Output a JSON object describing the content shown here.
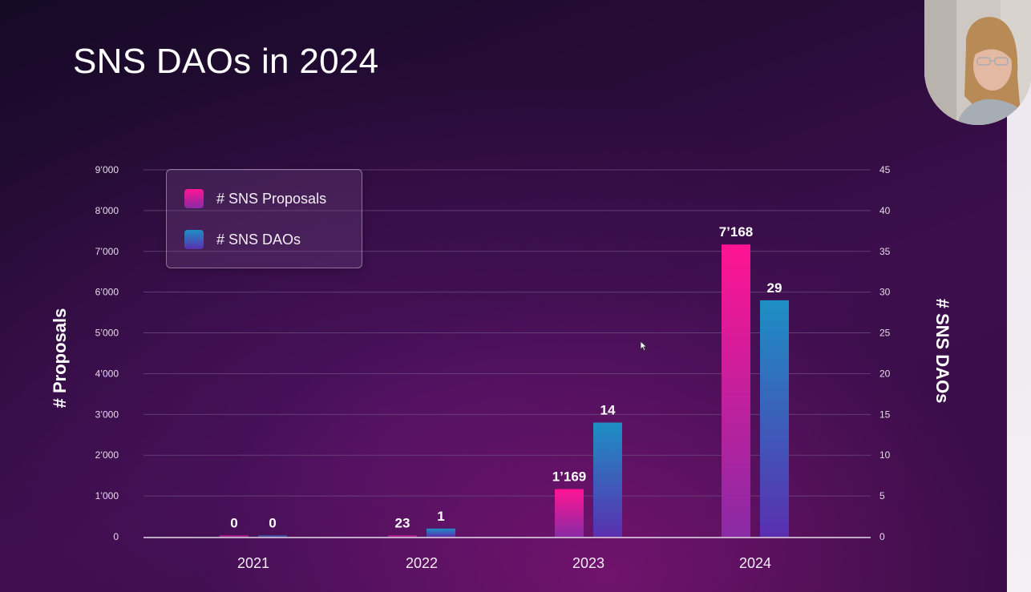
{
  "slide": {
    "title": "SNS DAOs in 2024"
  },
  "colors": {
    "proposals_top": "#ff1493",
    "proposals_bottom": "#8a2aa5",
    "daos_top": "#1d8fc4",
    "daos_bottom": "#5a2fb0",
    "gridline": "#6e4d80",
    "baseline": "#e6dcea"
  },
  "chart_data": {
    "type": "bar",
    "title": "SNS DAOs in 2024",
    "categories": [
      "2021",
      "2022",
      "2023",
      "2024"
    ],
    "series": [
      {
        "name": "# SNS Proposals",
        "axis": "left",
        "values": [
          0,
          23,
          1169,
          7168
        ],
        "labels": [
          "0",
          "23",
          "1’169",
          "7’168"
        ]
      },
      {
        "name": "# SNS DAOs",
        "axis": "right",
        "values": [
          0,
          1,
          14,
          29
        ],
        "labels": [
          "0",
          "1",
          "14",
          "29"
        ]
      }
    ],
    "ylabel": "# Proposals",
    "y2label": "# SNS DAOs",
    "ylim": [
      0,
      9000
    ],
    "y2lim": [
      0,
      45
    ],
    "yticks": [
      "0",
      "1’000",
      "2’000",
      "3’000",
      "4’000",
      "5’000",
      "6’000",
      "7’000",
      "8’000",
      "9’000"
    ],
    "y2ticks": [
      "0",
      "5",
      "10",
      "15",
      "20",
      "25",
      "30",
      "35",
      "40",
      "45"
    ],
    "legend": {
      "position": "top-left",
      "entries": [
        "# SNS Proposals",
        "# SNS DAOs"
      ]
    },
    "grid": true
  }
}
